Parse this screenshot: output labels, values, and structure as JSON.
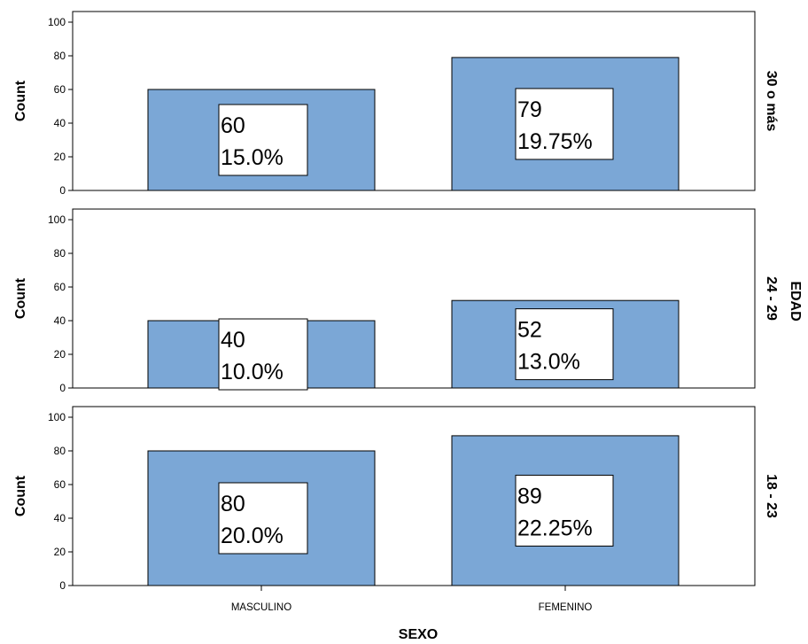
{
  "chart_data": {
    "type": "bar",
    "layout": "faceted-rows",
    "categories": [
      "MASCULINO",
      "FEMENINO"
    ],
    "xlabel": "SEXO",
    "ylabel": "Count",
    "row_variable": "EDAD",
    "ylim": [
      0,
      100
    ],
    "yticks": [
      0,
      20,
      40,
      60,
      80,
      100
    ],
    "bar_color": "#7ba7d6",
    "panels": [
      {
        "row_label": "30 o más",
        "values": [
          60,
          79
        ],
        "labels": [
          [
            "60",
            "15.0%"
          ],
          [
            "79",
            "19.75%"
          ]
        ]
      },
      {
        "row_label": "24 - 29",
        "values": [
          40,
          52
        ],
        "labels": [
          [
            "40",
            "10.0%"
          ],
          [
            "52",
            "13.0%"
          ]
        ]
      },
      {
        "row_label": "18 - 23",
        "values": [
          80,
          89
        ],
        "labels": [
          [
            "80",
            "20.0%"
          ],
          [
            "89",
            "22.25%"
          ]
        ]
      }
    ]
  }
}
